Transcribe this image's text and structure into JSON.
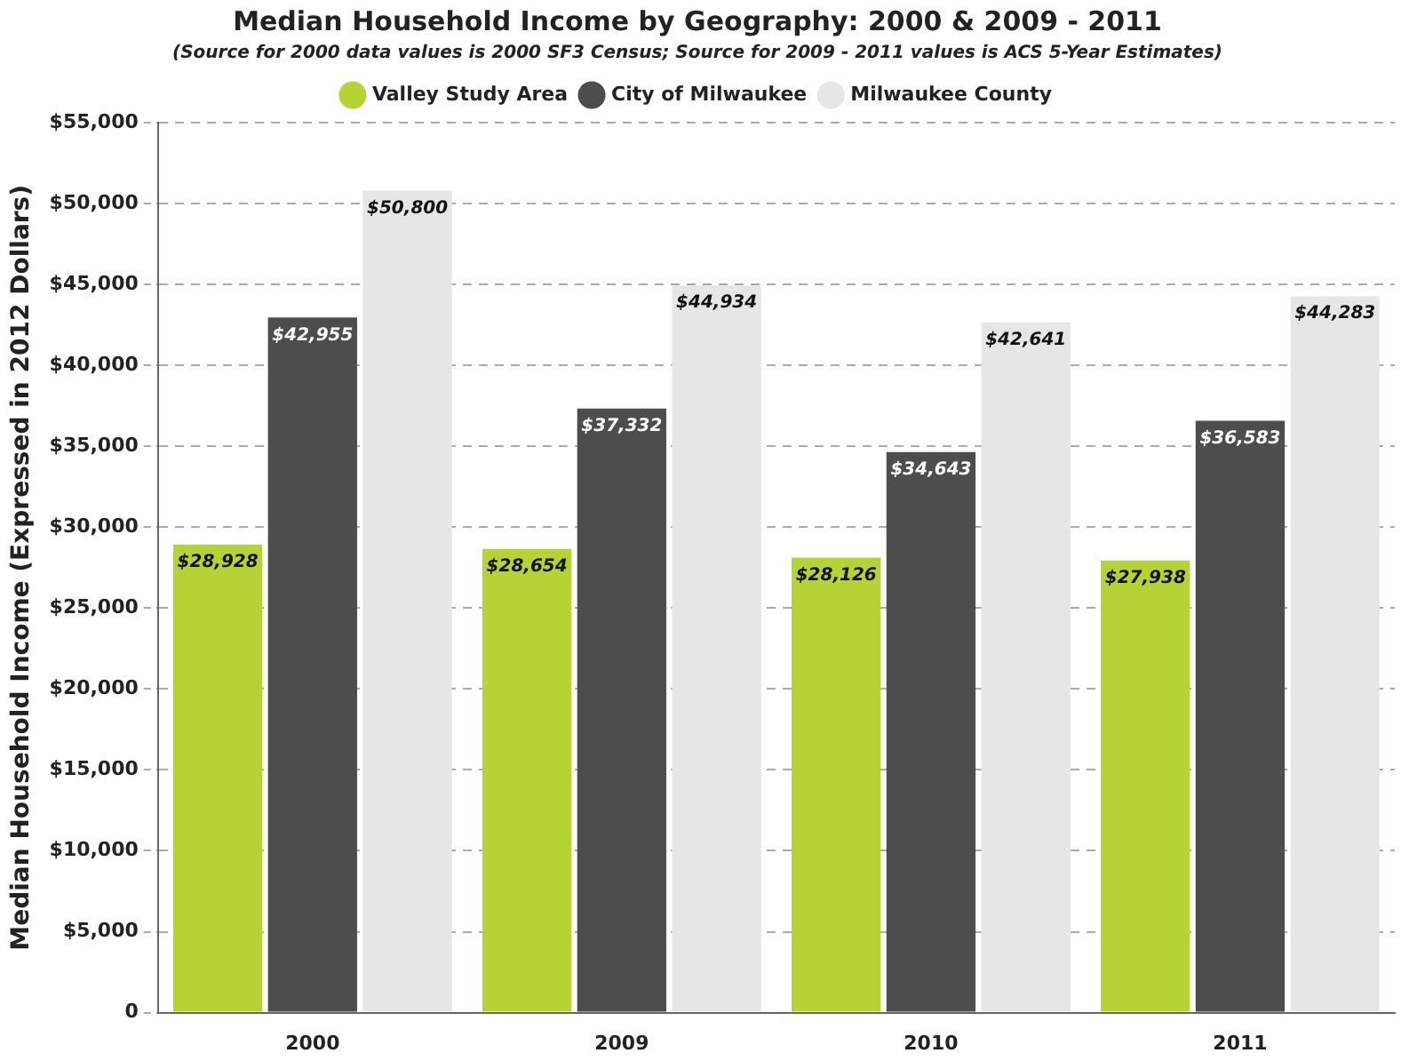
{
  "chart_data": {
    "type": "bar",
    "title": "Median Household Income by Geography: 2000 & 2009 - 2011",
    "subtitle": "(Source for 2000 data values is 2000 SF3 Census; Source for 2009 - 2011 values is ACS 5-Year Estimates)",
    "ylabel": "Median Household Income (Expressed in 2012 Dollars)",
    "categories": [
      "2000",
      "2009",
      "2010",
      "2011"
    ],
    "series": [
      {
        "name": "Valley Study Area",
        "color": "#b5d334",
        "values": [
          28928,
          28654,
          28126,
          27938
        ],
        "value_labels": [
          "$28,928",
          "$28,654",
          "$28,126",
          "$27,938"
        ]
      },
      {
        "name": "City of Milwaukee",
        "color": "#4d4d4d",
        "values": [
          42955,
          37332,
          34643,
          36583
        ],
        "value_labels": [
          "$42,955",
          "$37,332",
          "$34,643",
          "$36,583"
        ]
      },
      {
        "name": "Milwaukee County",
        "color": "#e6e6e6",
        "values": [
          50800,
          44934,
          42641,
          44283
        ],
        "value_labels": [
          "$50,800",
          "$44,934",
          "$42,641",
          "$44,283"
        ]
      }
    ],
    "ylim": [
      0,
      55000
    ],
    "yticks": [
      {
        "value": 0,
        "label": "0"
      },
      {
        "value": 5000,
        "label": "$5,000"
      },
      {
        "value": 10000,
        "label": "$10,000"
      },
      {
        "value": 15000,
        "label": "$15,000"
      },
      {
        "value": 20000,
        "label": "$20,000"
      },
      {
        "value": 25000,
        "label": "$25,000"
      },
      {
        "value": 30000,
        "label": "$30,000"
      },
      {
        "value": 35000,
        "label": "$35,000"
      },
      {
        "value": 40000,
        "label": "$40,000"
      },
      {
        "value": 45000,
        "label": "$45,000"
      },
      {
        "value": 50000,
        "label": "$50,000"
      },
      {
        "value": 55000,
        "label": "$55,000"
      }
    ],
    "grid": "y",
    "legend": "top"
  }
}
